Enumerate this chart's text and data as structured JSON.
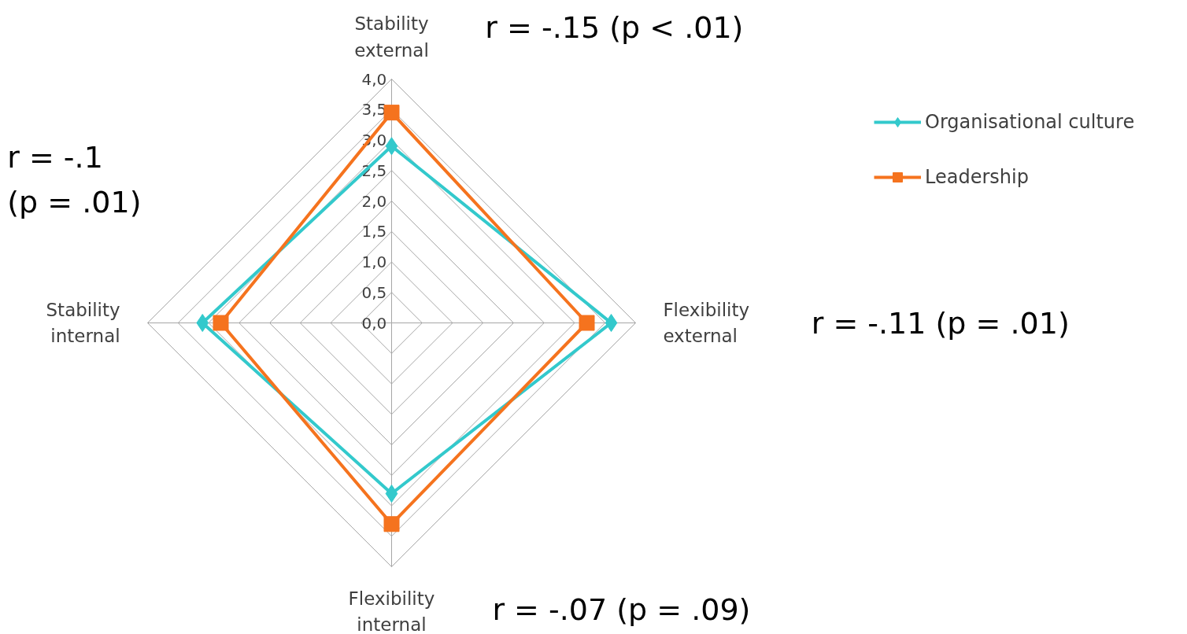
{
  "chart_data": {
    "type": "radar",
    "categories": [
      "Stability external",
      "Flexibility external",
      "Flexibility internal",
      "Stability internal"
    ],
    "series": [
      {
        "name": "Organisational culture",
        "color": "#33c9cc",
        "values": [
          2.9,
          3.6,
          2.8,
          3.1
        ],
        "marker": "diamond"
      },
      {
        "name": "Leadership",
        "color": "#f5731e",
        "values": [
          3.45,
          3.2,
          3.3,
          2.8
        ],
        "marker": "square"
      }
    ],
    "ylim": [
      0,
      4
    ],
    "yticks": [
      {
        "value": 0,
        "label": "0,0"
      },
      {
        "value": 0.5,
        "label": "0,5"
      },
      {
        "value": 1,
        "label": "1,0"
      },
      {
        "value": 1.5,
        "label": "1,5"
      },
      {
        "value": 2,
        "label": "2,0"
      },
      {
        "value": 2.5,
        "label": "2,5"
      },
      {
        "value": 3,
        "label": "3,0"
      },
      {
        "value": 3.5,
        "label": "3,5"
      },
      {
        "value": 4,
        "label": "4,0"
      }
    ],
    "grid": true,
    "legend": "top right",
    "annotations": [
      "r = -.15 (p < .01)",
      "r = -.11 (p = .01)",
      "r = -.07 (p = .09)",
      "r = -.1 (p = .01)"
    ]
  }
}
